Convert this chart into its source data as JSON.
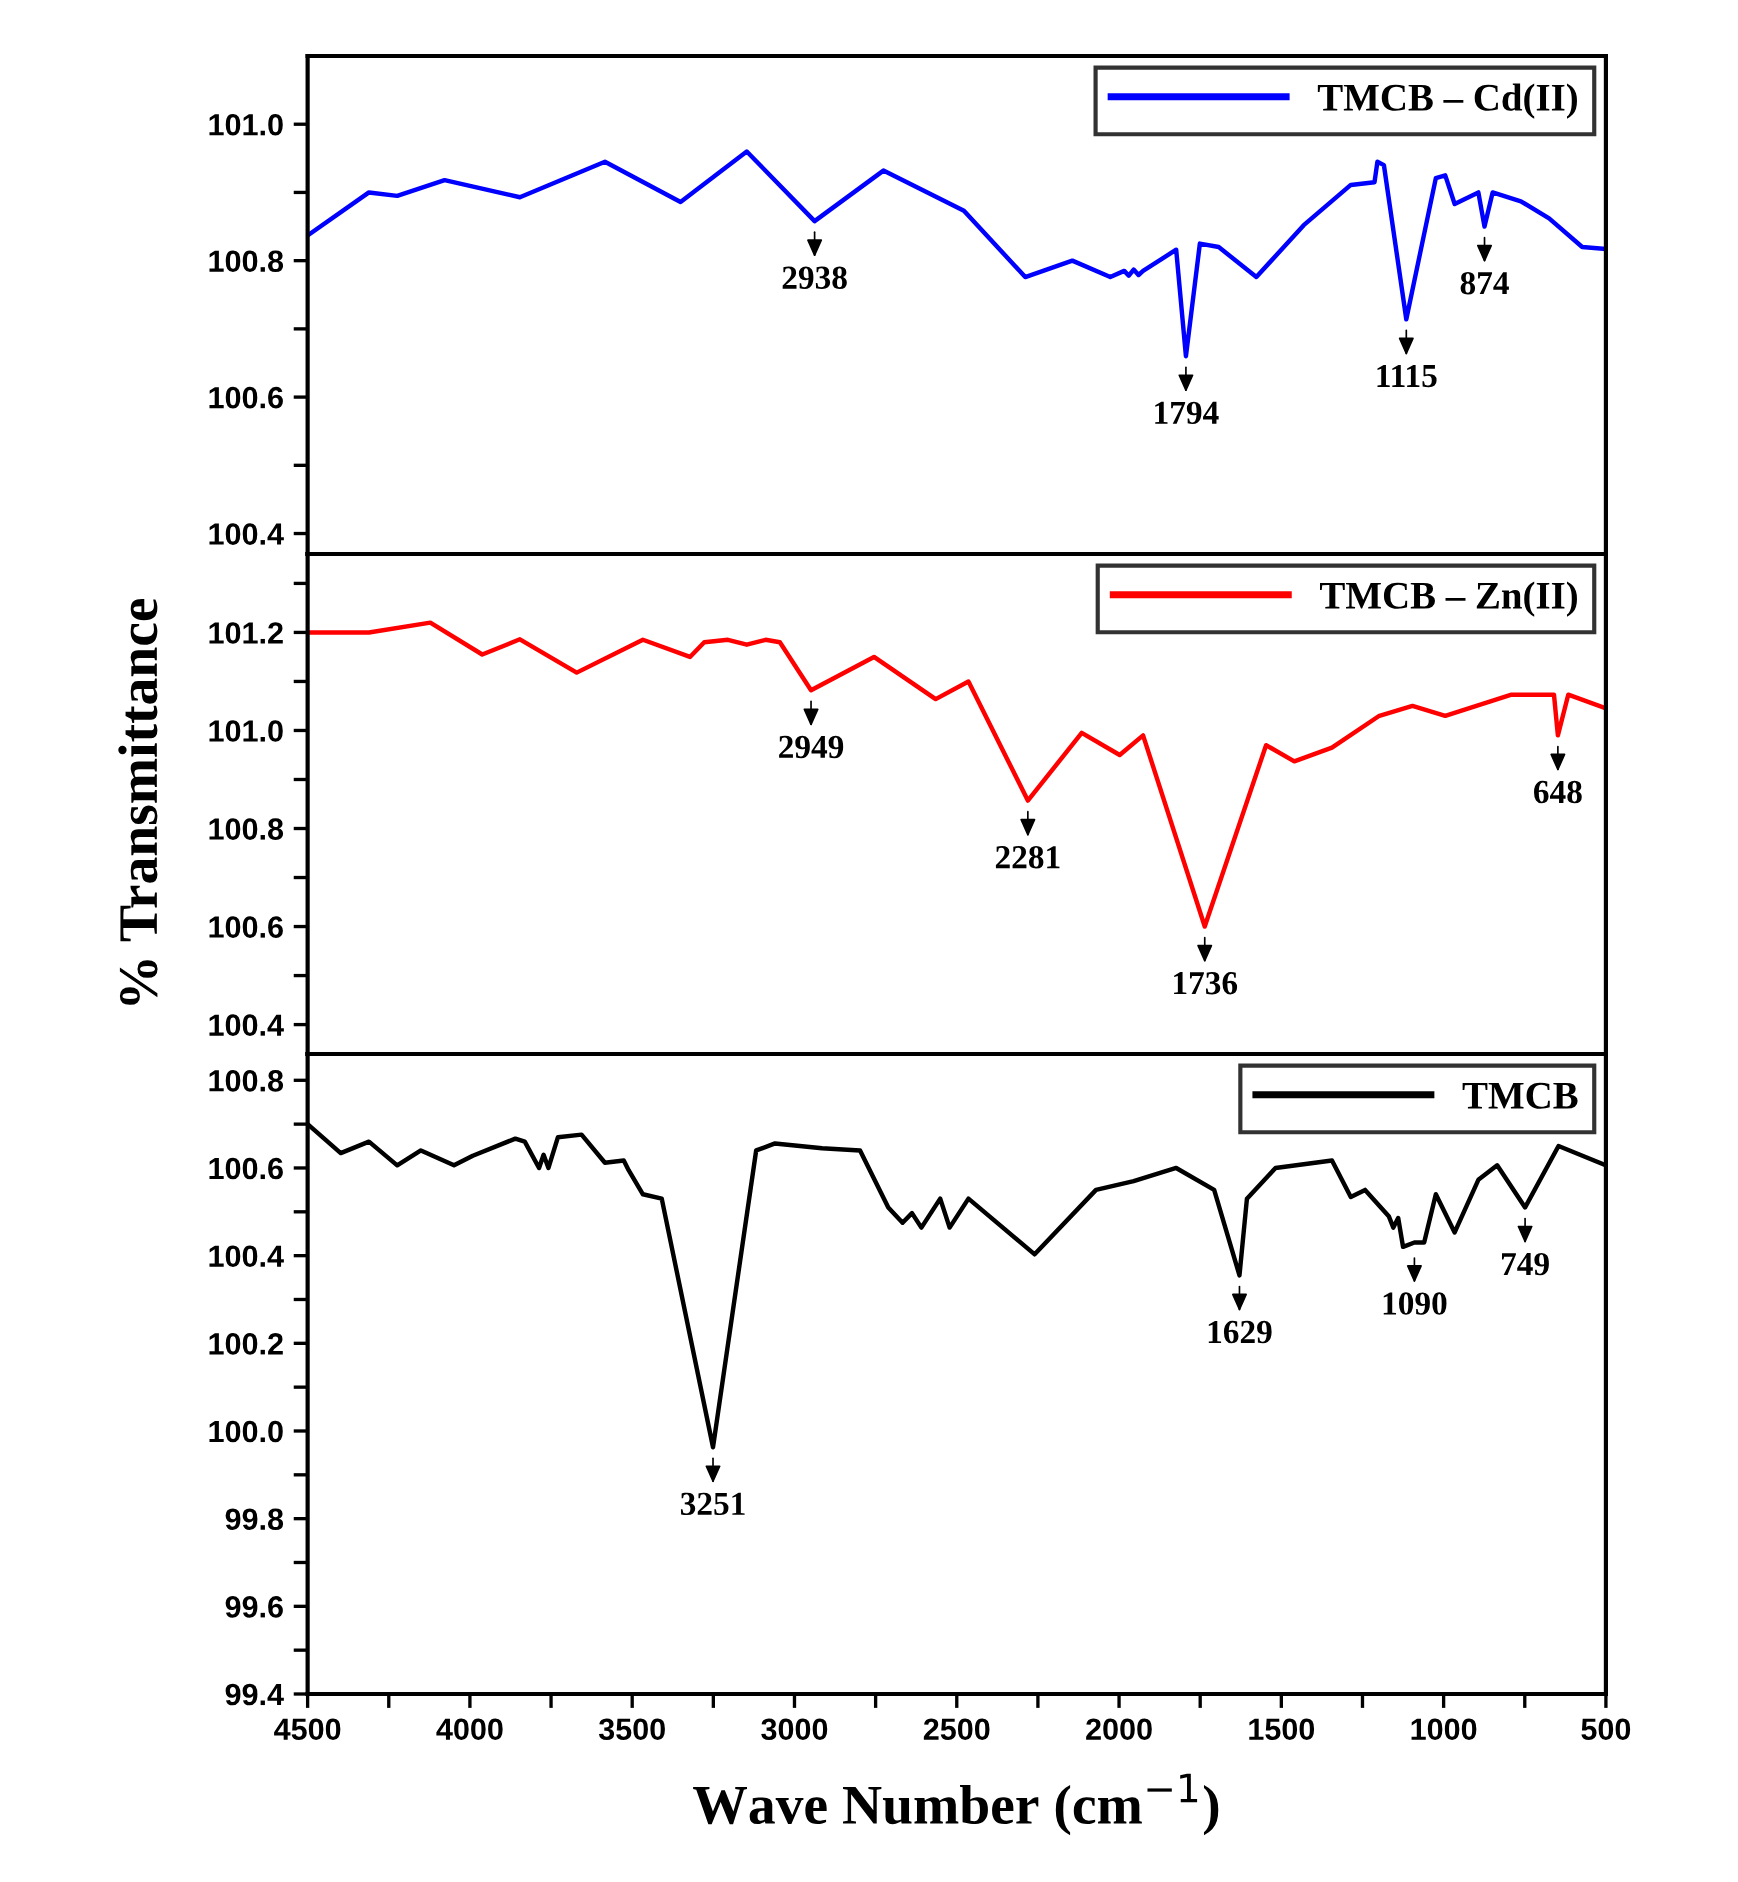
{
  "chart_data": [
    {
      "type": "line",
      "xlim": [
        4500,
        500
      ],
      "ylim": [
        100.37,
        101.1
      ],
      "tick_labels": "y",
      "legend": "top right",
      "yticks": [
        {
          "value": 100.4,
          "label": "100.4"
        },
        {
          "value": 100.5,
          "label": null
        },
        {
          "value": 100.6,
          "label": "100.6"
        },
        {
          "value": 100.7,
          "label": null
        },
        {
          "value": 100.8,
          "label": "100.8"
        },
        {
          "value": 100.9,
          "label": null
        },
        {
          "value": 101.0,
          "label": "101.0"
        }
      ],
      "series": [
        {
          "name": "TMCB – Cd(II)",
          "color": "#0000ff",
          "x": [
            4500,
            4311,
            4224,
            4078,
            3846,
            3584,
            3351,
            3147,
            2938,
            2726,
            2478,
            2289,
            2144,
            2027,
            1984,
            1970,
            1955,
            1940,
            1926,
            1824,
            1794,
            1751,
            1693,
            1577,
            1431,
            1286,
            1213,
            1204,
            1184,
            1115,
            1024,
            995,
            966,
            893,
            874,
            849,
            762,
            675,
            573,
            500
          ],
          "values": [
            100.837,
            100.9,
            100.895,
            100.918,
            100.893,
            100.945,
            100.886,
            100.96,
            100.858,
            100.932,
            100.873,
            100.776,
            100.8,
            100.776,
            100.785,
            100.778,
            100.787,
            100.779,
            100.785,
            100.816,
            100.66,
            100.825,
            100.82,
            100.776,
            100.852,
            100.911,
            100.915,
            100.945,
            100.94,
            100.714,
            100.921,
            100.925,
            100.883,
            100.9,
            100.85,
            100.9,
            100.887,
            100.862,
            100.82,
            100.817
          ]
        }
      ],
      "annotations": [
        {
          "text": "2938",
          "x": 2938,
          "y": 100.858
        },
        {
          "text": "1794",
          "x": 1794,
          "y": 100.66
        },
        {
          "text": "1115",
          "x": 1115,
          "y": 100.714
        },
        {
          "text": "874",
          "x": 874,
          "y": 100.85
        }
      ]
    },
    {
      "type": "line",
      "xlim": [
        4500,
        500
      ],
      "ylim": [
        100.34,
        101.36
      ],
      "tick_labels": "y",
      "legend": "top right",
      "ylabel": "% Transmittance",
      "yticks": [
        {
          "value": 100.4,
          "label": "100.4"
        },
        {
          "value": 100.5,
          "label": null
        },
        {
          "value": 100.6,
          "label": "100.6"
        },
        {
          "value": 100.7,
          "label": null
        },
        {
          "value": 100.8,
          "label": "100.8"
        },
        {
          "value": 100.9,
          "label": null
        },
        {
          "value": 101.0,
          "label": "101.0"
        },
        {
          "value": 101.1,
          "label": null
        },
        {
          "value": 101.2,
          "label": "101.2"
        },
        {
          "value": 101.3,
          "label": null
        }
      ],
      "series": [
        {
          "name": "TMCB – Zn(II)",
          "color": "#ff0000",
          "x": [
            4500,
            4311,
            4122,
            3962,
            3846,
            3671,
            3467,
            3322,
            3278,
            3205,
            3147,
            3089,
            3045,
            2949,
            2755,
            2565,
            2464,
            2281,
            2115,
            1998,
            1926,
            1736,
            1547,
            1460,
            1344,
            1198,
            1096,
            995,
            791,
            660,
            648,
            616,
            500
          ],
          "values": [
            101.2,
            101.2,
            101.22,
            101.155,
            101.186,
            101.118,
            101.185,
            101.15,
            101.18,
            101.185,
            101.175,
            101.185,
            101.18,
            101.082,
            101.15,
            101.064,
            101.1,
            100.857,
            100.995,
            100.95,
            100.99,
            100.6,
            100.97,
            100.937,
            100.965,
            101.03,
            101.05,
            101.03,
            101.073,
            101.073,
            100.99,
            101.073,
            101.045
          ]
        }
      ],
      "annotations": [
        {
          "text": "2949",
          "x": 2949,
          "y": 101.082
        },
        {
          "text": "2281",
          "x": 2281,
          "y": 100.857
        },
        {
          "text": "1736",
          "x": 1736,
          "y": 100.6
        },
        {
          "text": "648",
          "x": 648,
          "y": 100.99
        }
      ]
    },
    {
      "type": "line",
      "xlim": [
        4500,
        500
      ],
      "ylim": [
        99.4,
        100.86
      ],
      "legend": "top right",
      "xlabel": "Wave Number (cm$^{−1}$)",
      "xticks": [
        4500,
        {
          "value": 4250,
          "label": null
        },
        4000,
        {
          "value": 3750,
          "label": null
        },
        3500,
        {
          "value": 3250,
          "label": null
        },
        3000,
        {
          "value": 2750,
          "label": null
        },
        2500,
        {
          "value": 2250,
          "label": null
        },
        2000,
        {
          "value": 1750,
          "label": null
        },
        1500,
        {
          "value": 1250,
          "label": null
        },
        1000,
        {
          "value": 750,
          "label": null
        },
        500
      ],
      "yticks": [
        {
          "value": 99.4,
          "label": "99.4"
        },
        {
          "value": 99.5,
          "label": null
        },
        {
          "value": 99.6,
          "label": "99.6"
        },
        {
          "value": 99.7,
          "label": null
        },
        {
          "value": 99.8,
          "label": "99.8"
        },
        {
          "value": 99.9,
          "label": null
        },
        {
          "value": 100.0,
          "label": "100.0"
        },
        {
          "value": 100.1,
          "label": null
        },
        {
          "value": 100.2,
          "label": "100.2"
        },
        {
          "value": 100.3,
          "label": null
        },
        {
          "value": 100.4,
          "label": "100.4"
        },
        {
          "value": 100.5,
          "label": null
        },
        {
          "value": 100.6,
          "label": "100.6"
        },
        {
          "value": 100.7,
          "label": null
        },
        {
          "value": 100.8,
          "label": "100.8"
        }
      ],
      "series": [
        {
          "name": "TMCB",
          "color": "#000000",
          "x": [
            4500,
            4398,
            4311,
            4224,
            4151,
            4049,
            3991,
            3860,
            3831,
            3787,
            3773,
            3758,
            3729,
            3656,
            3584,
            3526,
            3511,
            3467,
            3409,
            3251,
            3118,
            3060,
            2915,
            2798,
            2711,
            2667,
            2638,
            2609,
            2580,
            2551,
            2522,
            2464,
            2260,
            2071,
            1955,
            1824,
            1707,
            1629,
            1606,
            1518,
            1344,
            1286,
            1242,
            1169,
            1155,
            1140,
            1125,
            1090,
            1060,
            1024,
            966,
            893,
            835,
            749,
            646,
            500
          ],
          "values": [
            100.7,
            100.634,
            100.66,
            100.606,
            100.64,
            100.606,
            100.628,
            100.667,
            100.66,
            100.6,
            100.63,
            100.6,
            100.67,
            100.676,
            100.612,
            100.617,
            100.595,
            100.54,
            100.53,
            99.963,
            100.64,
            100.656,
            100.645,
            100.64,
            100.51,
            100.475,
            100.497,
            100.464,
            100.497,
            100.53,
            100.464,
            100.53,
            100.403,
            100.55,
            100.57,
            100.6,
            100.55,
            100.355,
            100.53,
            100.6,
            100.617,
            100.534,
            100.55,
            100.49,
            100.464,
            100.486,
            100.42,
            100.43,
            100.43,
            100.54,
            100.453,
            100.573,
            100.606,
            100.51,
            100.65,
            100.606
          ]
        }
      ],
      "annotations": [
        {
          "text": "3251",
          "x": 3251,
          "y": 99.963
        },
        {
          "text": "1629",
          "x": 1629,
          "y": 100.355
        },
        {
          "text": "1090",
          "x": 1090,
          "y": 100.42
        },
        {
          "text": "749",
          "x": 749,
          "y": 100.51
        }
      ]
    }
  ]
}
